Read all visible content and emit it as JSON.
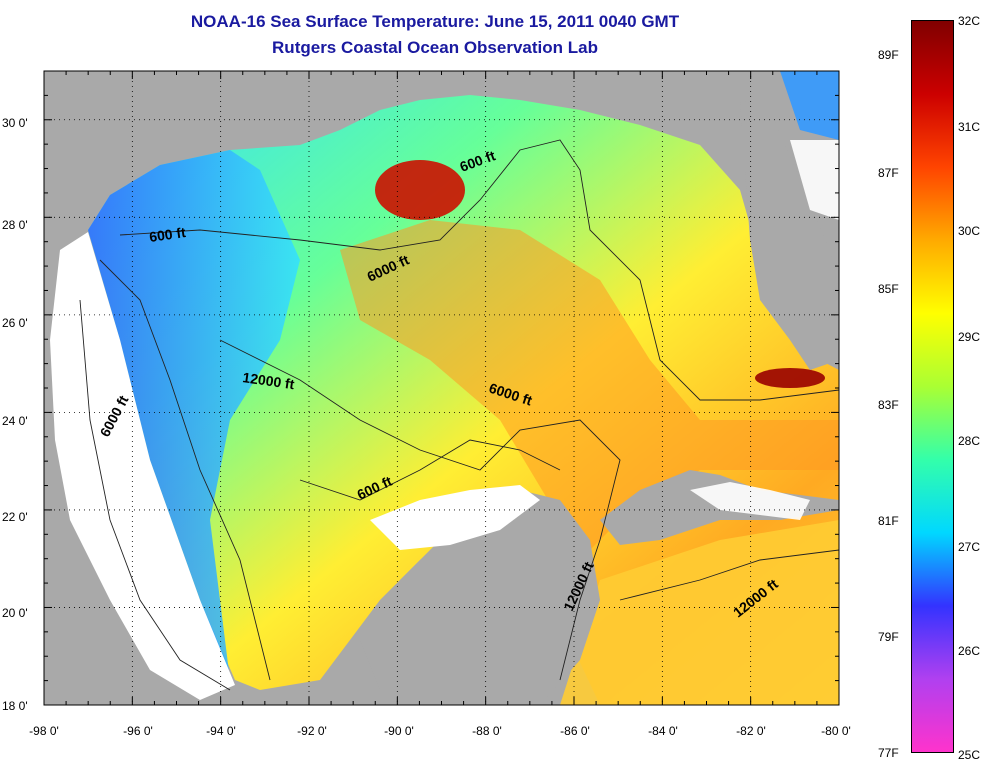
{
  "title": {
    "line1": "NOAA-16 Sea Surface Temperature:  June 15, 2011 0040 GMT",
    "line2": "Rutgers Coastal Ocean Observation Lab"
  },
  "colors": {
    "land": "#a9a9a9",
    "no_data": "#ffffff",
    "title_text": "#1a1aa0"
  },
  "map": {
    "lon_range": [
      -98,
      -80
    ],
    "lat_range": [
      18,
      31
    ],
    "lat_labels": [
      "30 0'",
      "28 0'",
      "26 0'",
      "24 0'",
      "22 0'",
      "20 0'",
      "18 0'"
    ],
    "lon_labels": [
      "-98 0'",
      "-96 0'",
      "-94 0'",
      "-92 0'",
      "-90 0'",
      "-88 0'",
      "-86 0'",
      "-84 0'",
      "-82 0'",
      "-80 0'"
    ],
    "contour_labels": [
      "600 ft",
      "600 ft",
      "6000 ft",
      "12000 ft",
      "6000 ft",
      "6000 ft",
      "600 ft",
      "12000 ft",
      "12000 ft"
    ]
  },
  "colorbar": {
    "celsius_labels": [
      "32C",
      "31C",
      "30C",
      "29C",
      "28C",
      "27C",
      "26C",
      "25C"
    ],
    "fahrenheit_labels": [
      "89F",
      "87F",
      "85F",
      "83F",
      "81F",
      "79F",
      "77F"
    ],
    "gradient": [
      "#ff33cc",
      "#b040f0",
      "#3333ff",
      "#00d8ff",
      "#33ffaa",
      "#aaff33",
      "#ffff00",
      "#ffaa00",
      "#ff4400",
      "#cc0000",
      "#800000"
    ]
  }
}
